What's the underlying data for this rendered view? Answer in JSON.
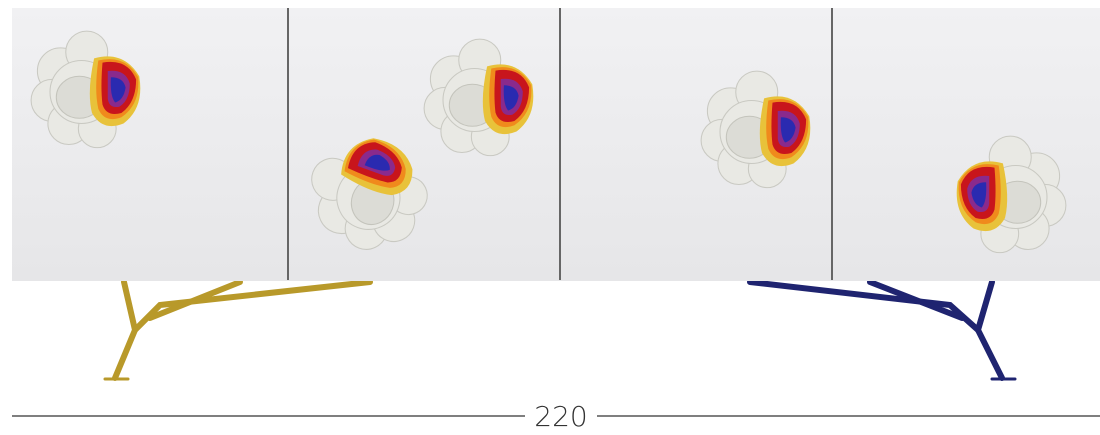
{
  "dimension_label": "220"
}
